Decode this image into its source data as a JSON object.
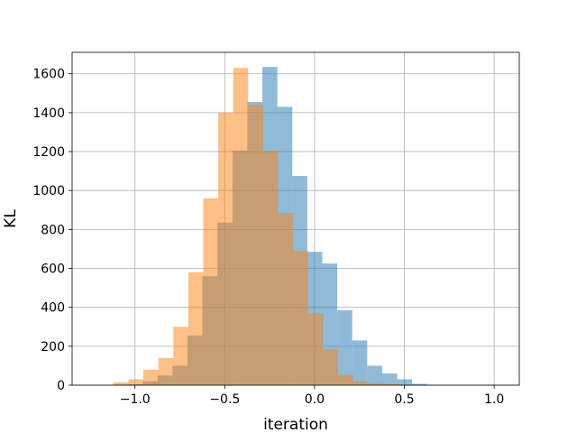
{
  "chart_data": {
    "type": "bar",
    "title": "",
    "xlabel": "iteration",
    "ylabel": "KL",
    "xlim": [
      -1.35,
      1.14
    ],
    "ylim": [
      0,
      1710
    ],
    "grid": true,
    "legend": "none",
    "bin_width": 0.0834,
    "x_ticks": [
      {
        "value": -1.0,
        "label": "−1.0"
      },
      {
        "value": -0.5,
        "label": "−0.5"
      },
      {
        "value": 0.0,
        "label": "0.0"
      },
      {
        "value": 0.5,
        "label": "0.5"
      },
      {
        "value": 1.0,
        "label": "1.0"
      }
    ],
    "y_ticks": [
      {
        "value": 0,
        "label": "0"
      },
      {
        "value": 200,
        "label": "200"
      },
      {
        "value": 400,
        "label": "400"
      },
      {
        "value": 600,
        "label": "600"
      },
      {
        "value": 800,
        "label": "800"
      },
      {
        "value": 1000,
        "label": "1000"
      },
      {
        "value": 1200,
        "label": "1200"
      },
      {
        "value": 1400,
        "label": "1400"
      },
      {
        "value": 1600,
        "label": "1600"
      }
    ],
    "series": [
      {
        "color": "#1f77b4",
        "opacity": 0.5,
        "bin_start": -1.208,
        "values": [
          1,
          2,
          5,
          20,
          50,
          100,
          255,
          560,
          835,
          1205,
          1455,
          1635,
          1430,
          1075,
          685,
          625,
          385,
          230,
          100,
          60,
          30,
          7,
          2,
          1,
          1,
          0,
          1,
          0
        ]
      },
      {
        "color": "#ff7f0e",
        "opacity": 0.5,
        "bin_start": -1.12,
        "values": [
          15,
          30,
          80,
          140,
          300,
          580,
          960,
          1400,
          1630,
          1440,
          1205,
          885,
          690,
          370,
          185,
          55,
          20,
          10,
          7
        ]
      }
    ]
  }
}
